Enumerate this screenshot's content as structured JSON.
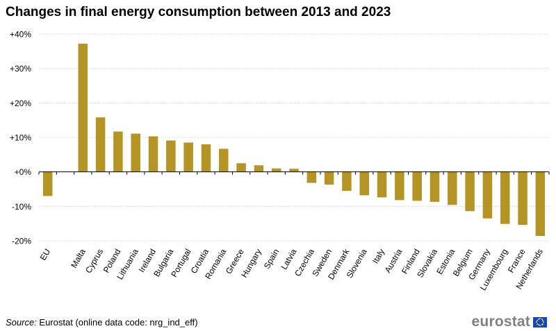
{
  "title": "Changes in final energy consumption between 2013 and 2023",
  "source": {
    "label": "Source:",
    "text": " Eurostat (online data code: nrg_ind_eff)"
  },
  "logo": {
    "text": "eurostat",
    "icon": "eu-flag-icon"
  },
  "colors": {
    "bar": "#b39424",
    "grid": "#c8c8c8",
    "axis": "#000000"
  },
  "chart_data": {
    "type": "bar",
    "title": "Changes in final energy consumption between 2013 and 2023",
    "xlabel": "",
    "ylabel": "",
    "ylim": [
      -20,
      40
    ],
    "yticks": [
      40,
      30,
      20,
      10,
      0,
      -10,
      -20
    ],
    "ytick_labels": [
      "+40%",
      "+30%",
      "+20%",
      "+10%",
      "+0%",
      "-10%",
      "-20%"
    ],
    "grid": true,
    "categories": [
      "EU",
      "",
      "Malta",
      "Cyprus",
      "Poland",
      "Lithuania",
      "Ireland",
      "Bulgaria",
      "Portugal",
      "Croatia",
      "Romania",
      "Greece",
      "Hungary",
      "Spain",
      "Latvia",
      "Czechia",
      "Sweden",
      "Denmark",
      "Slovenia",
      "Italy",
      "Austria",
      "Finland",
      "Slovakia",
      "Estonia",
      "Belgium",
      "Germany",
      "Luxembourg",
      "France",
      "Netherlands"
    ],
    "values": [
      -7.0,
      null,
      37.2,
      15.8,
      11.7,
      11.1,
      10.3,
      9.1,
      8.5,
      8.0,
      6.7,
      2.5,
      1.9,
      1.0,
      0.9,
      -3.2,
      -3.7,
      -5.5,
      -6.8,
      -7.4,
      -8.2,
      -8.4,
      -8.7,
      -9.6,
      -11.4,
      -13.5,
      -15.1,
      -15.4,
      -18.6
    ]
  }
}
